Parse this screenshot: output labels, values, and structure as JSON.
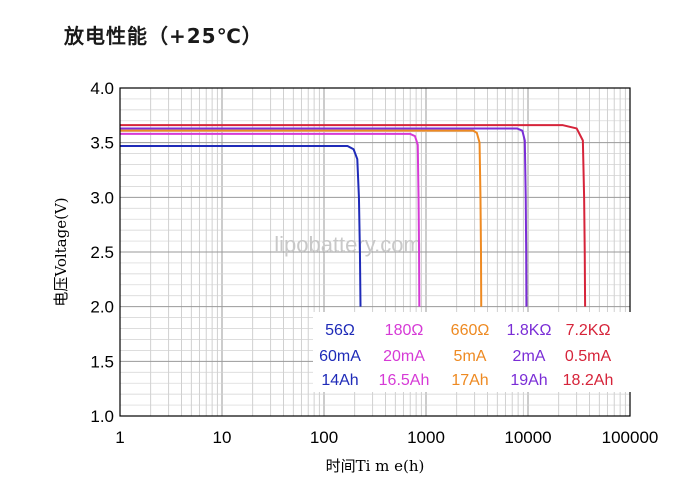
{
  "title": "放电性能（+25℃）",
  "watermark": "lipobattery.com",
  "chart_data": {
    "type": "line",
    "title": "放电性能（+25℃）",
    "xlabel": "时间Ti m e(h)",
    "ylabel": "电压Voltage(V)",
    "xscale": "log",
    "xlim": [
      1,
      100000
    ],
    "ylim": [
      1.0,
      4.0
    ],
    "grid": true,
    "xticks": [
      "1",
      "10",
      "100",
      "1000",
      "10000",
      "100000"
    ],
    "yticks": [
      "1.0",
      "1.5",
      "2.0",
      "2.5",
      "3.0",
      "3.5",
      "4.0"
    ],
    "legend_placement": "bottom-right",
    "series": [
      {
        "color": "#1f2bb8",
        "load": "56Ω",
        "current": "60mA",
        "capacity": "14Ah",
        "points": [
          [
            1,
            3.47
          ],
          [
            10,
            3.47
          ],
          [
            100,
            3.47
          ],
          [
            170,
            3.47
          ],
          [
            195,
            3.44
          ],
          [
            212,
            3.35
          ],
          [
            220,
            3.0
          ],
          [
            225,
            2.5
          ],
          [
            228,
            2.0
          ]
        ]
      },
      {
        "color": "#d63ad6",
        "load": "180Ω",
        "current": "20mA",
        "capacity": "16.5Ah",
        "points": [
          [
            1,
            3.58
          ],
          [
            10,
            3.58
          ],
          [
            100,
            3.58
          ],
          [
            700,
            3.58
          ],
          [
            780,
            3.56
          ],
          [
            830,
            3.48
          ],
          [
            845,
            3.0
          ],
          [
            855,
            2.5
          ],
          [
            860,
            2.0
          ]
        ]
      },
      {
        "color": "#ee8a22",
        "load": "660Ω",
        "current": "5mA",
        "capacity": "17Ah",
        "points": [
          [
            1,
            3.61
          ],
          [
            10,
            3.61
          ],
          [
            100,
            3.61
          ],
          [
            2900,
            3.61
          ],
          [
            3150,
            3.59
          ],
          [
            3350,
            3.5
          ],
          [
            3420,
            3.0
          ],
          [
            3460,
            2.5
          ],
          [
            3480,
            2.0
          ]
        ]
      },
      {
        "color": "#7a2dd6",
        "load": "1.8KΩ",
        "current": "2mA",
        "capacity": "19Ah",
        "points": [
          [
            1,
            3.63
          ],
          [
            10,
            3.63
          ],
          [
            100,
            3.63
          ],
          [
            7800,
            3.63
          ],
          [
            8800,
            3.61
          ],
          [
            9300,
            3.52
          ],
          [
            9500,
            3.0
          ],
          [
            9600,
            2.5
          ],
          [
            9650,
            2.0
          ]
        ]
      },
      {
        "color": "#d6243a",
        "load": "7.2KΩ",
        "current": "0.5mA",
        "capacity": "18.2Ah",
        "points": [
          [
            1,
            3.66
          ],
          [
            10,
            3.66
          ],
          [
            100,
            3.66
          ],
          [
            22000,
            3.66
          ],
          [
            30000,
            3.63
          ],
          [
            34500,
            3.52
          ],
          [
            35500,
            3.0
          ],
          [
            36000,
            2.5
          ],
          [
            36300,
            2.0
          ]
        ]
      }
    ]
  }
}
